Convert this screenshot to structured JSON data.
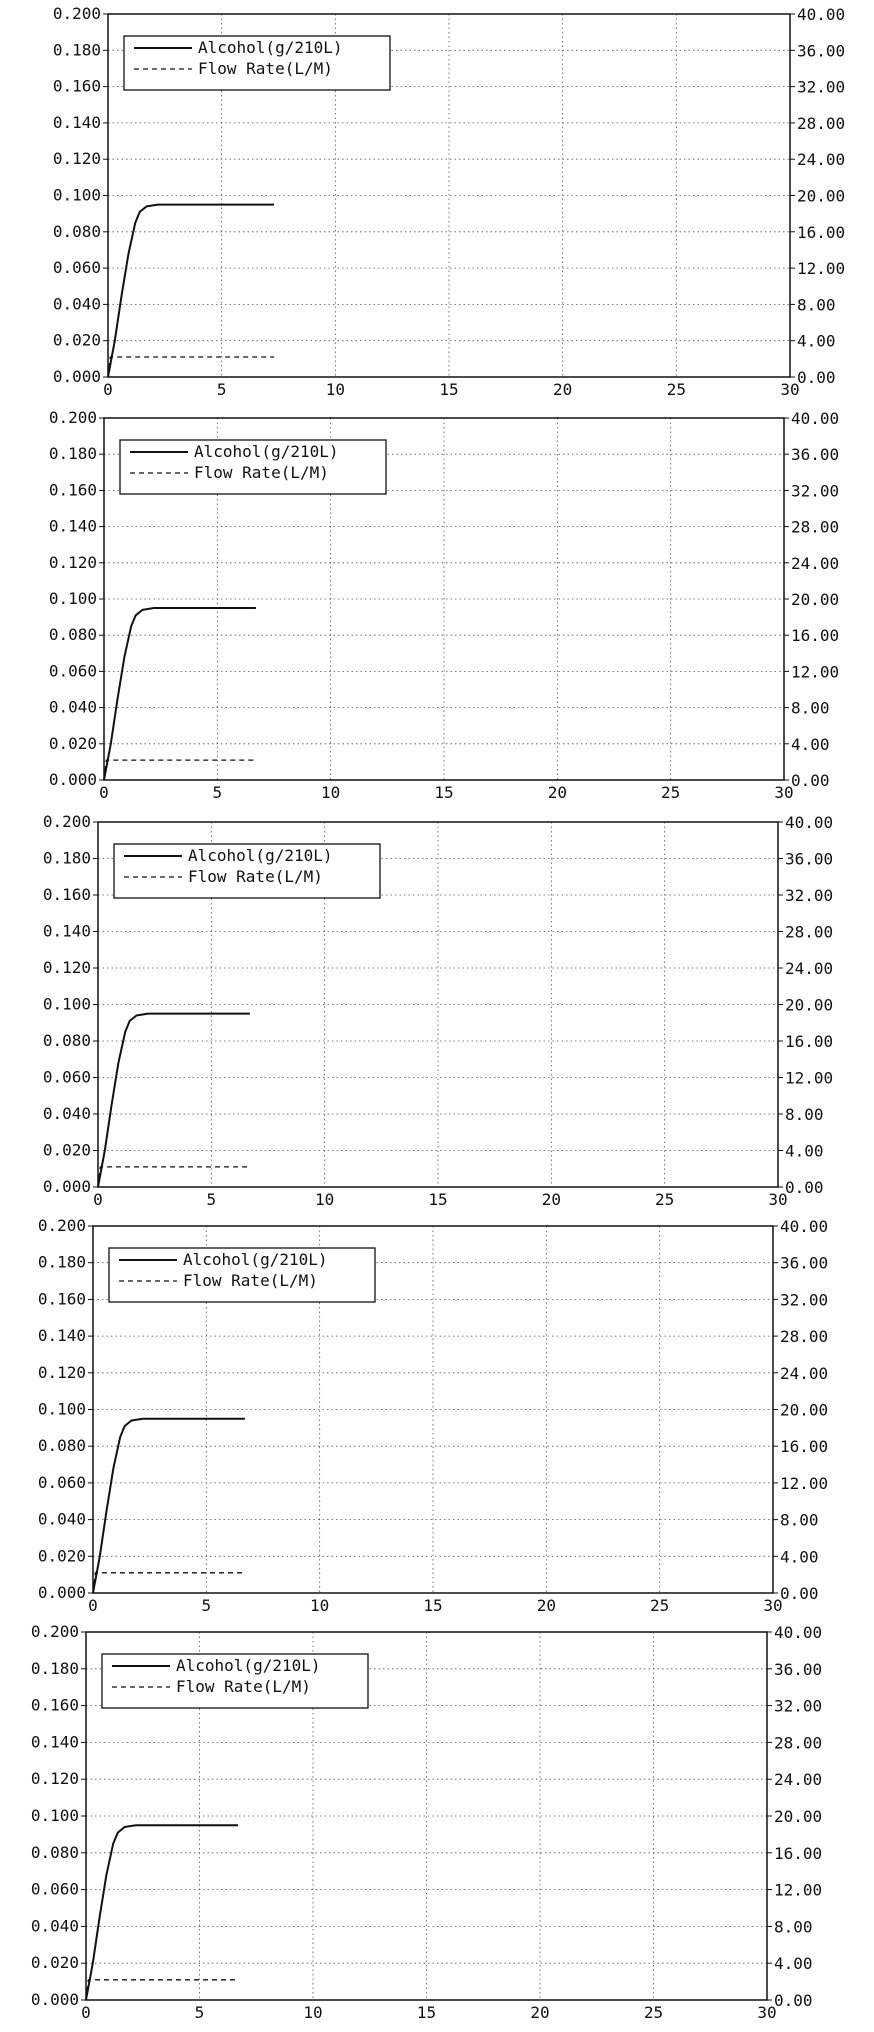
{
  "chart_data": [
    {
      "type": "line",
      "ylim": [
        0,
        0.2
      ],
      "y2lim": [
        0,
        40
      ],
      "xlim": [
        0,
        30
      ],
      "grid": true,
      "legend_position": "top-left",
      "x_ticks": [
        "0",
        "5",
        "10",
        "15",
        "20",
        "25",
        "30"
      ],
      "y_ticks": [
        "0.000",
        "0.020",
        "0.040",
        "0.060",
        "0.080",
        "0.100",
        "0.120",
        "0.140",
        "0.160",
        "0.180",
        "0.200"
      ],
      "y2_ticks": [
        "0.00",
        "4.00",
        "8.00",
        "12.00",
        "16.00",
        "20.00",
        "24.00",
        "28.00",
        "32.00",
        "36.00",
        "40.00"
      ],
      "series": [
        {
          "name": "Alcohol(g/210L)",
          "axis": "left",
          "style": "solid",
          "x": [
            0,
            0.3,
            0.6,
            0.9,
            1.2,
            1.4,
            1.7,
            2.2,
            3,
            5,
            7.3
          ],
          "y": [
            0,
            0.02,
            0.045,
            0.068,
            0.085,
            0.091,
            0.094,
            0.095,
            0.095,
            0.095,
            0.095
          ]
        },
        {
          "name": "Flow Rate(L/M)",
          "axis": "right",
          "style": "dashed",
          "x": [
            0,
            0.1,
            0.3,
            7.3
          ],
          "y": [
            0,
            2.2,
            2.2,
            2.2
          ]
        }
      ]
    },
    {
      "type": "line",
      "ylim": [
        0,
        0.2
      ],
      "y2lim": [
        0,
        40
      ],
      "xlim": [
        0,
        30
      ],
      "grid": true,
      "legend_position": "top-left",
      "x_ticks": [
        "0",
        "5",
        "10",
        "15",
        "20",
        "25",
        "30"
      ],
      "y_ticks": [
        "0.000",
        "0.020",
        "0.040",
        "0.060",
        "0.080",
        "0.100",
        "0.120",
        "0.140",
        "0.160",
        "0.180",
        "0.200"
      ],
      "y2_ticks": [
        "0.00",
        "4.00",
        "8.00",
        "12.00",
        "16.00",
        "20.00",
        "24.00",
        "28.00",
        "32.00",
        "36.00",
        "40.00"
      ],
      "series": [
        {
          "name": "Alcohol(g/210L)",
          "axis": "left",
          "style": "solid",
          "x": [
            0,
            0.3,
            0.6,
            0.9,
            1.2,
            1.4,
            1.7,
            2.2,
            3,
            5,
            6.7
          ],
          "y": [
            0,
            0.02,
            0.045,
            0.068,
            0.085,
            0.091,
            0.094,
            0.095,
            0.095,
            0.095,
            0.095
          ]
        },
        {
          "name": "Flow Rate(L/M)",
          "axis": "right",
          "style": "dashed",
          "x": [
            0,
            0.1,
            0.3,
            6.7
          ],
          "y": [
            0,
            2.2,
            2.2,
            2.2
          ]
        }
      ]
    },
    {
      "type": "line",
      "ylim": [
        0,
        0.2
      ],
      "y2lim": [
        0,
        40
      ],
      "xlim": [
        0,
        30
      ],
      "grid": true,
      "legend_position": "top-left",
      "x_ticks": [
        "0",
        "5",
        "10",
        "15",
        "20",
        "25",
        "30"
      ],
      "y_ticks": [
        "0.000",
        "0.020",
        "0.040",
        "0.060",
        "0.080",
        "0.100",
        "0.120",
        "0.140",
        "0.160",
        "0.180",
        "0.200"
      ],
      "y2_ticks": [
        "0.00",
        "4.00",
        "8.00",
        "12.00",
        "16.00",
        "20.00",
        "24.00",
        "28.00",
        "32.00",
        "36.00",
        "40.00"
      ],
      "series": [
        {
          "name": "Alcohol(g/210L)",
          "axis": "left",
          "style": "solid",
          "x": [
            0,
            0.3,
            0.6,
            0.9,
            1.2,
            1.4,
            1.7,
            2.2,
            3,
            5,
            6.7
          ],
          "y": [
            0,
            0.02,
            0.045,
            0.068,
            0.085,
            0.091,
            0.094,
            0.095,
            0.095,
            0.095,
            0.095
          ]
        },
        {
          "name": "Flow Rate(L/M)",
          "axis": "right",
          "style": "dashed",
          "x": [
            0,
            0.1,
            0.3,
            6.7
          ],
          "y": [
            0,
            2.2,
            2.2,
            2.2
          ]
        }
      ]
    },
    {
      "type": "line",
      "ylim": [
        0,
        0.2
      ],
      "y2lim": [
        0,
        40
      ],
      "xlim": [
        0,
        30
      ],
      "grid": true,
      "legend_position": "top-left",
      "x_ticks": [
        "0",
        "5",
        "10",
        "15",
        "20",
        "25",
        "30"
      ],
      "y_ticks": [
        "0.000",
        "0.020",
        "0.040",
        "0.060",
        "0.080",
        "0.100",
        "0.120",
        "0.140",
        "0.160",
        "0.180",
        "0.200"
      ],
      "y2_ticks": [
        "0.00",
        "4.00",
        "8.00",
        "12.00",
        "16.00",
        "20.00",
        "24.00",
        "28.00",
        "32.00",
        "36.00",
        "40.00"
      ],
      "series": [
        {
          "name": "Alcohol(g/210L)",
          "axis": "left",
          "style": "solid",
          "x": [
            0,
            0.3,
            0.6,
            0.9,
            1.2,
            1.4,
            1.7,
            2.2,
            3,
            5,
            6.7
          ],
          "y": [
            0,
            0.02,
            0.045,
            0.068,
            0.085,
            0.091,
            0.094,
            0.095,
            0.095,
            0.095,
            0.095
          ]
        },
        {
          "name": "Flow Rate(L/M)",
          "axis": "right",
          "style": "dashed",
          "x": [
            0,
            0.1,
            0.3,
            6.7
          ],
          "y": [
            0,
            2.2,
            2.2,
            2.2
          ]
        }
      ]
    },
    {
      "type": "line",
      "ylim": [
        0,
        0.2
      ],
      "y2lim": [
        0,
        40
      ],
      "xlim": [
        0,
        30
      ],
      "grid": true,
      "legend_position": "top-left",
      "x_ticks": [
        "0",
        "5",
        "10",
        "15",
        "20",
        "25",
        "30"
      ],
      "y_ticks": [
        "0.000",
        "0.020",
        "0.040",
        "0.060",
        "0.080",
        "0.100",
        "0.120",
        "0.140",
        "0.160",
        "0.180",
        "0.200"
      ],
      "y2_ticks": [
        "0.00",
        "4.00",
        "8.00",
        "12.00",
        "16.00",
        "20.00",
        "24.00",
        "28.00",
        "32.00",
        "36.00",
        "40.00"
      ],
      "series": [
        {
          "name": "Alcohol(g/210L)",
          "axis": "left",
          "style": "solid",
          "x": [
            0,
            0.3,
            0.6,
            0.9,
            1.2,
            1.4,
            1.7,
            2.2,
            3,
            5,
            6.7
          ],
          "y": [
            0,
            0.02,
            0.045,
            0.068,
            0.085,
            0.091,
            0.094,
            0.095,
            0.095,
            0.095,
            0.095
          ]
        },
        {
          "name": "Flow Rate(L/M)",
          "axis": "right",
          "style": "dashed",
          "x": [
            0,
            0.1,
            0.3,
            6.7
          ],
          "y": [
            0,
            2.2,
            2.2,
            2.2
          ]
        }
      ]
    }
  ]
}
